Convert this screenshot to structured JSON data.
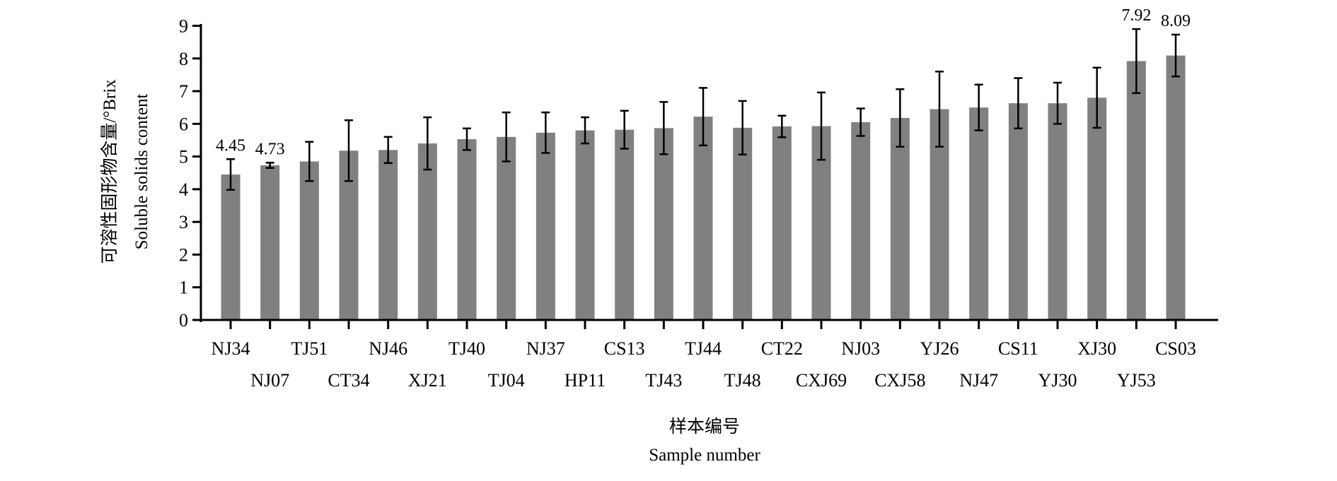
{
  "chart_data": {
    "type": "bar",
    "title": "",
    "ylabel_cn": "可溶性固形物含量/°Brix",
    "ylabel": "Soluble solids content",
    "xlabel_cn": "样本编号",
    "xlabel": "Sample number",
    "ylim": [
      0,
      9
    ],
    "yticks": [
      "0",
      "1",
      "2",
      "3",
      "4",
      "5",
      "6",
      "7",
      "8",
      "9"
    ],
    "bar_color": "#808080",
    "grid": false,
    "categories": [
      "NJ34",
      "NJ07",
      "TJ51",
      "CT34",
      "NJ46",
      "XJ21",
      "TJ40",
      "TJ04",
      "NJ37",
      "HP11",
      "CS13",
      "TJ43",
      "TJ44",
      "TJ48",
      "CT22",
      "CXJ69",
      "NJ03",
      "CXJ58",
      "YJ26",
      "NJ47",
      "CS11",
      "YJ30",
      "XJ30",
      "YJ53",
      "CS03"
    ],
    "values": [
      4.45,
      4.73,
      4.85,
      5.18,
      5.2,
      5.4,
      5.53,
      5.6,
      5.73,
      5.8,
      5.82,
      5.87,
      6.22,
      5.88,
      5.92,
      5.93,
      6.05,
      6.18,
      6.45,
      6.5,
      6.63,
      6.63,
      6.8,
      7.92,
      8.09
    ],
    "errors": [
      0.47,
      0.08,
      0.6,
      0.93,
      0.4,
      0.8,
      0.33,
      0.75,
      0.62,
      0.4,
      0.58,
      0.8,
      0.88,
      0.82,
      0.33,
      1.03,
      0.42,
      0.88,
      1.15,
      0.7,
      0.77,
      0.63,
      0.92,
      0.98,
      0.64
    ],
    "data_labels": {
      "0": "4.45",
      "1": "4.73",
      "23": "7.92",
      "24": "8.09"
    }
  }
}
